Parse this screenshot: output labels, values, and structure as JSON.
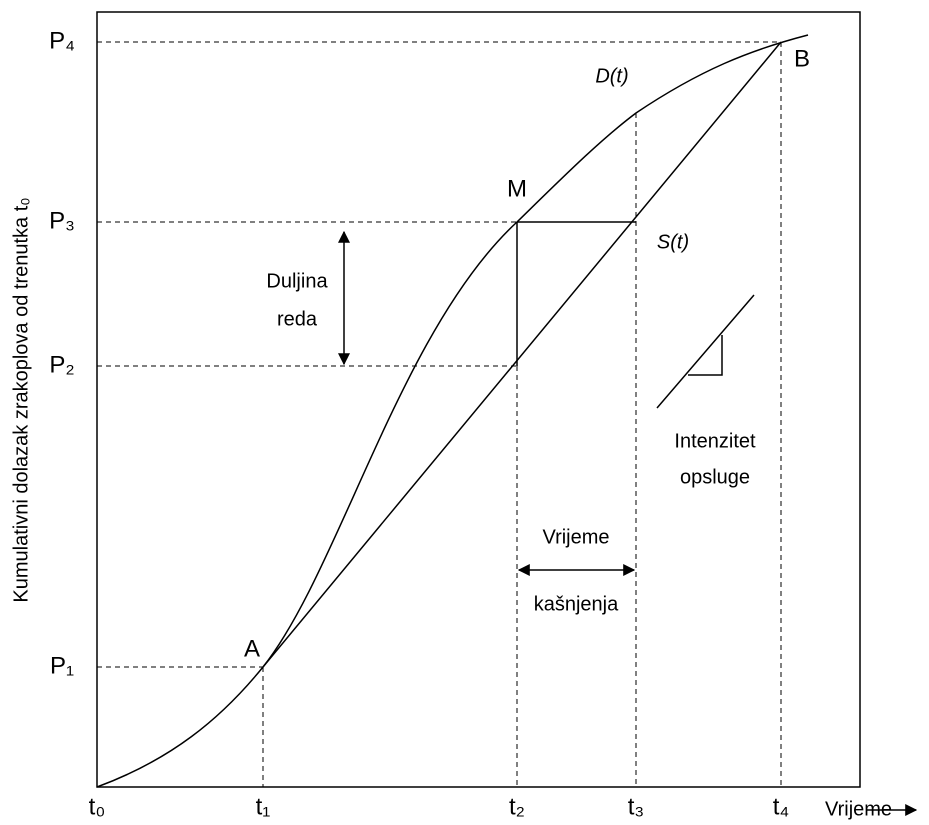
{
  "axes": {
    "y_label": "Kumulativni dolazak zrakoplova od trenutka t₀",
    "x_label": "Vrijeme",
    "y_ticks": [
      "P₄",
      "P₃",
      "P₂",
      "P₁"
    ],
    "x_ticks": [
      "t₀",
      "t₁",
      "t₂",
      "t₃",
      "t₄"
    ]
  },
  "curves": {
    "demand": "D(t)",
    "service": "S(t)"
  },
  "points": {
    "m": "M",
    "a": "A",
    "b": "B"
  },
  "annotations": {
    "queue_length": [
      "Duljina",
      "reda"
    ],
    "delay": [
      "Vrijeme",
      "kašnjenja"
    ],
    "service_rate": [
      "Intenzitet",
      "opsluge"
    ]
  }
}
